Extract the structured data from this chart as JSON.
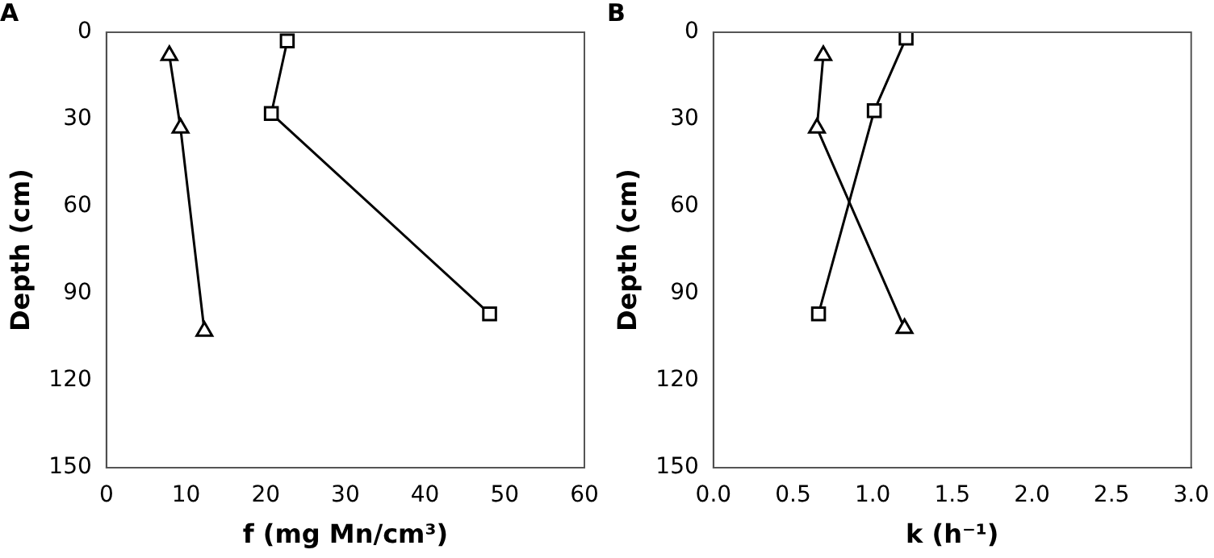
{
  "chart_data": [
    {
      "type": "line",
      "title": "A",
      "xlabel": "f (mg Mn/cm³)",
      "ylabel": "Depth (cm)",
      "xlim": [
        0,
        60
      ],
      "xticks": [
        0,
        10,
        20,
        30,
        40,
        50,
        60
      ],
      "ylim": [
        150,
        0
      ],
      "yticks": [
        0,
        30,
        60,
        90,
        120,
        150
      ],
      "grid": false,
      "legend": false,
      "line_style": "solid",
      "series": [
        {
          "color": "#000000",
          "marker": "triangle",
          "x": [
            7.9,
            9.3,
            12.3
          ],
          "values": [
            8,
            33,
            103
          ]
        },
        {
          "color": "#000000",
          "marker": "square",
          "x": [
            22.7,
            20.7,
            48.1
          ],
          "values": [
            3,
            28,
            97
          ]
        }
      ]
    },
    {
      "type": "line",
      "title": "B",
      "xlabel": "k (h⁻¹)",
      "ylabel": "Depth (cm)",
      "xlim": [
        0,
        3
      ],
      "xticks": [
        {
          "value": 0,
          "label": "0.0"
        },
        0.5,
        {
          "value": 1,
          "label": "1.0"
        },
        1.5,
        {
          "value": 2,
          "label": "2.0"
        },
        2.5,
        {
          "value": 3,
          "label": "3.0"
        }
      ],
      "ylim": [
        150,
        0
      ],
      "yticks": [
        0,
        30,
        60,
        90,
        120,
        150
      ],
      "grid": false,
      "legend": false,
      "line_style": "solid",
      "series": [
        {
          "color": "#000000",
          "marker": "triangle",
          "x": [
            0.69,
            0.65,
            1.2
          ],
          "values": [
            8,
            33,
            102
          ]
        },
        {
          "color": "#000000",
          "marker": "square",
          "x": [
            1.21,
            1.01,
            0.66
          ],
          "values": [
            2,
            27,
            97
          ]
        }
      ]
    }
  ]
}
